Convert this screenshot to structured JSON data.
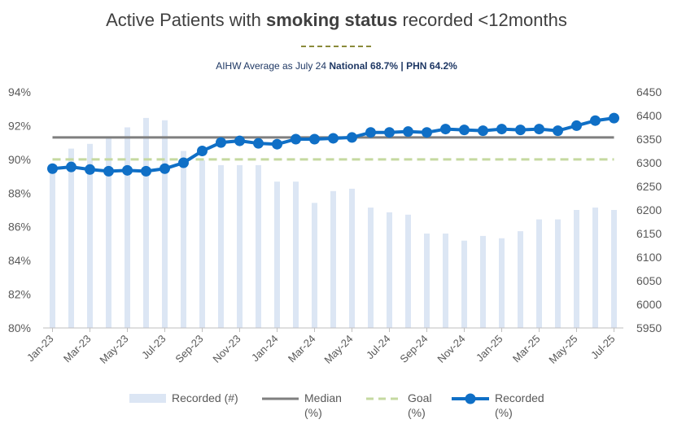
{
  "title": {
    "part1": "Active Patients with ",
    "bold": "smoking status",
    "part2": " recorded <12months"
  },
  "subtitle": {
    "prefix": "AIHW Average as July 24 ",
    "bold": "National 68.7% | PHN 64.2%"
  },
  "colors": {
    "bars": "#dce6f4",
    "median": "#7f7f7f",
    "goal": "#c5d9a0",
    "recorded": "#0f6fc6",
    "axis_text": "#595959",
    "grid": "#d9d9d9",
    "subtitle": "#1f3864"
  },
  "chart_data": {
    "type": "bar+line",
    "title": "Active Patients with smoking status recorded <12months",
    "x": [
      "Jan-23",
      "Feb-23",
      "Mar-23",
      "Apr-23",
      "May-23",
      "Jun-23",
      "Jul-23",
      "Aug-23",
      "Sep-23",
      "Oct-23",
      "Nov-23",
      "Dec-23",
      "Jan-24",
      "Feb-24",
      "Mar-24",
      "Apr-24",
      "May-24",
      "Jun-24",
      "Jul-24",
      "Aug-24",
      "Sep-24",
      "Oct-24",
      "Nov-24",
      "Dec-24",
      "Jan-25",
      "Feb-25",
      "Mar-25",
      "Apr-25",
      "May-25",
      "Jun-25",
      "Jul-25"
    ],
    "x_tick_labels": [
      "Jan-23",
      "Mar-23",
      "May-23",
      "Jul-23",
      "Sep-23",
      "Nov-23",
      "Jan-24",
      "Mar-24",
      "May-24",
      "Jul-24",
      "Sep-24",
      "Nov-24",
      "Jan-25",
      "Mar-25",
      "May-25",
      "Jul-25"
    ],
    "y_left": {
      "ticks": [
        "80%",
        "82%",
        "84%",
        "86%",
        "88%",
        "90%",
        "92%",
        "94%"
      ],
      "range": [
        80,
        94
      ]
    },
    "y_right": {
      "ticks": [
        "5950",
        "6000",
        "6050",
        "6100",
        "6150",
        "6200",
        "6250",
        "6300",
        "6350",
        "6400",
        "6450"
      ],
      "range": [
        5950,
        6450
      ]
    },
    "series": [
      {
        "name": "Recorded (#)",
        "type": "bar",
        "axis": "right",
        "values": [
          6285,
          6330,
          6340,
          6355,
          6375,
          6395,
          6390,
          6325,
          6305,
          6295,
          6295,
          6295,
          6260,
          6260,
          6215,
          6240,
          6245,
          6205,
          6195,
          6190,
          6150,
          6150,
          6135,
          6145,
          6140,
          6155,
          6180,
          6180,
          6200,
          6205,
          6200
        ]
      },
      {
        "name": "Median (%)",
        "type": "line",
        "axis": "left",
        "values_constant": 91.3
      },
      {
        "name": "Goal (%)",
        "type": "dashed-line",
        "axis": "left",
        "values_constant": 90.0
      },
      {
        "name": "Recorded (%)",
        "type": "line-marker",
        "axis": "left",
        "values": [
          89.45,
          89.55,
          89.4,
          89.3,
          89.35,
          89.3,
          89.45,
          89.8,
          90.5,
          91.0,
          91.1,
          90.95,
          90.9,
          91.2,
          91.2,
          91.25,
          91.3,
          91.6,
          91.6,
          91.65,
          91.6,
          91.8,
          91.75,
          91.7,
          91.8,
          91.75,
          91.8,
          91.7,
          92.0,
          92.3,
          92.45
        ]
      }
    ],
    "legend": [
      {
        "line1": "Recorded (#)",
        "line2": ""
      },
      {
        "line1": "Median",
        "line2": "(%)"
      },
      {
        "line1": "Goal",
        "line2": "(%)"
      },
      {
        "line1": "Recorded",
        "line2": "(%)"
      }
    ],
    "legend_position": "bottom",
    "grid": false
  }
}
